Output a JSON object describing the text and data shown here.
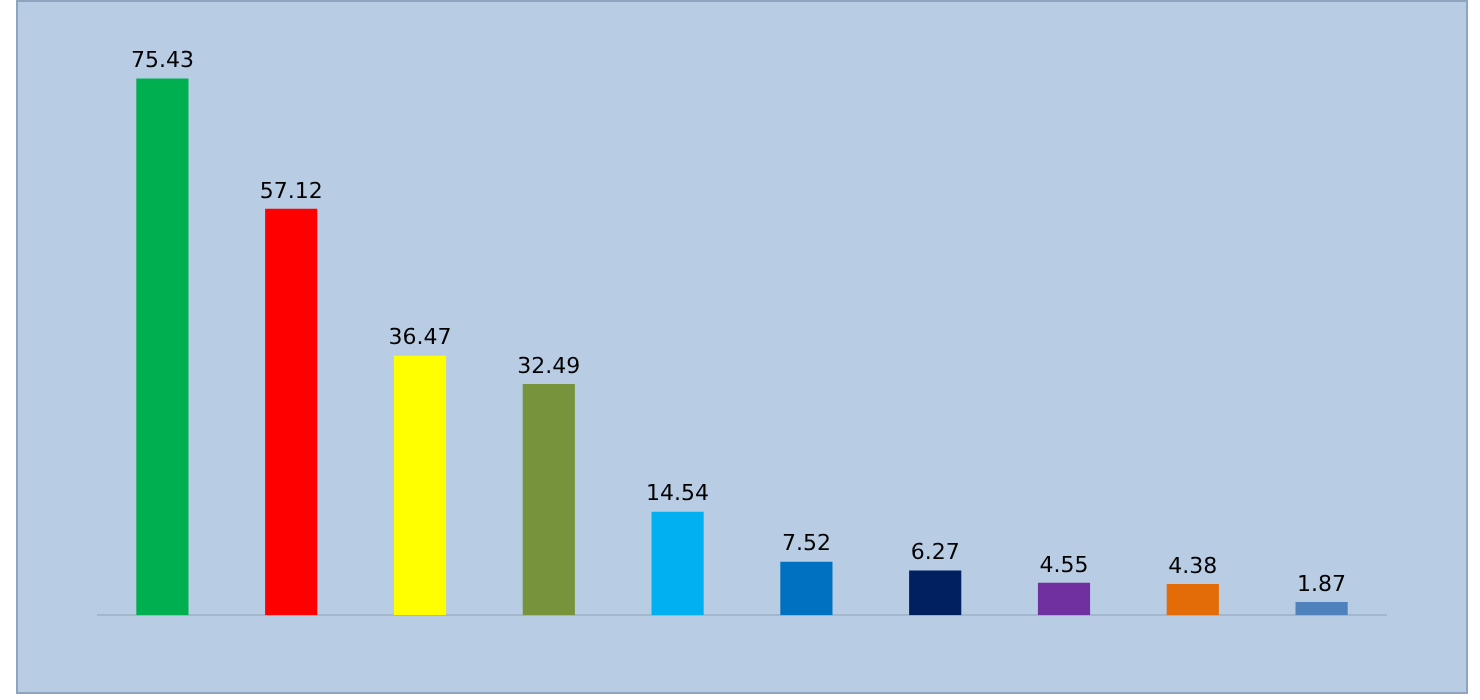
{
  "chart_data": {
    "type": "bar",
    "categories": [
      null,
      null,
      null,
      null,
      null,
      null,
      null,
      null,
      null,
      null
    ],
    "values": [
      75.43,
      57.12,
      36.47,
      32.49,
      14.54,
      7.52,
      6.27,
      4.55,
      4.38,
      1.87
    ],
    "colors": [
      "#00b050",
      "#ff0000",
      "#ffff00",
      "#77933c",
      "#00b0f0",
      "#0070c0",
      "#002060",
      "#7030a0",
      "#e36c09",
      "#4f81bd"
    ],
    "data_labels": true,
    "grid": false,
    "legend": false
  }
}
